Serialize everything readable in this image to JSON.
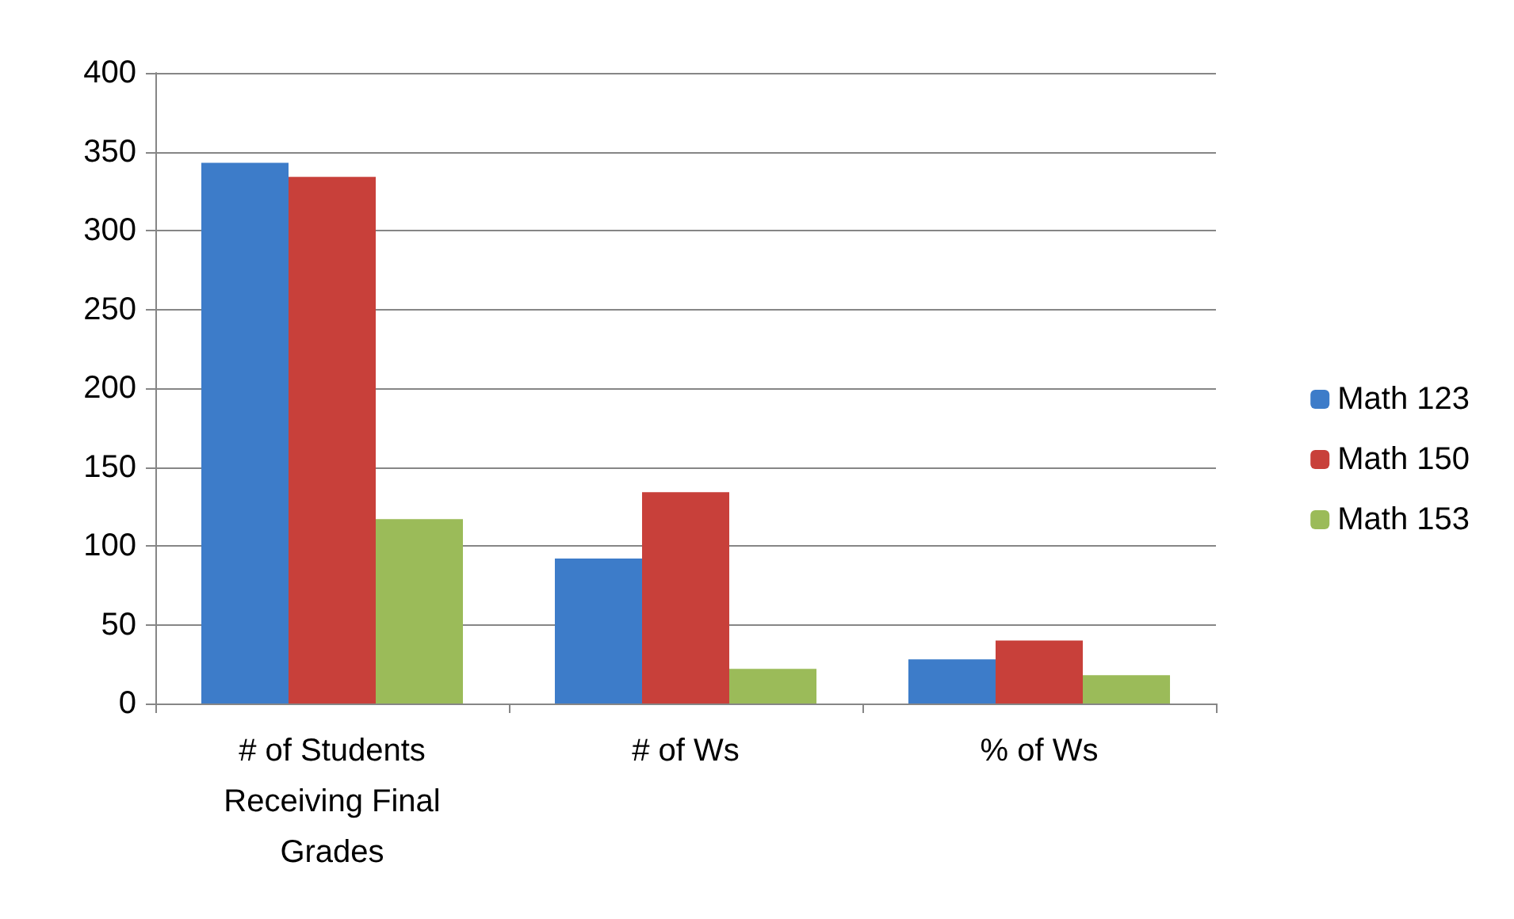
{
  "chart_data": {
    "type": "bar",
    "categories": [
      "# of Students\nReceiving Final\nGrades",
      "# of Ws",
      "% of Ws"
    ],
    "series": [
      {
        "name": "Math 123",
        "color": "#3d7cc9",
        "values": [
          343,
          92,
          28
        ]
      },
      {
        "name": "Math 150",
        "color": "#c8403a",
        "values": [
          334,
          134,
          40
        ]
      },
      {
        "name": "Math 153",
        "color": "#9bbb59",
        "values": [
          117,
          22,
          18
        ]
      }
    ],
    "ylim": [
      0,
      400
    ],
    "yticks": [
      0,
      50,
      100,
      150,
      200,
      250,
      300,
      350,
      400
    ],
    "grid": "y",
    "legend": "right"
  }
}
